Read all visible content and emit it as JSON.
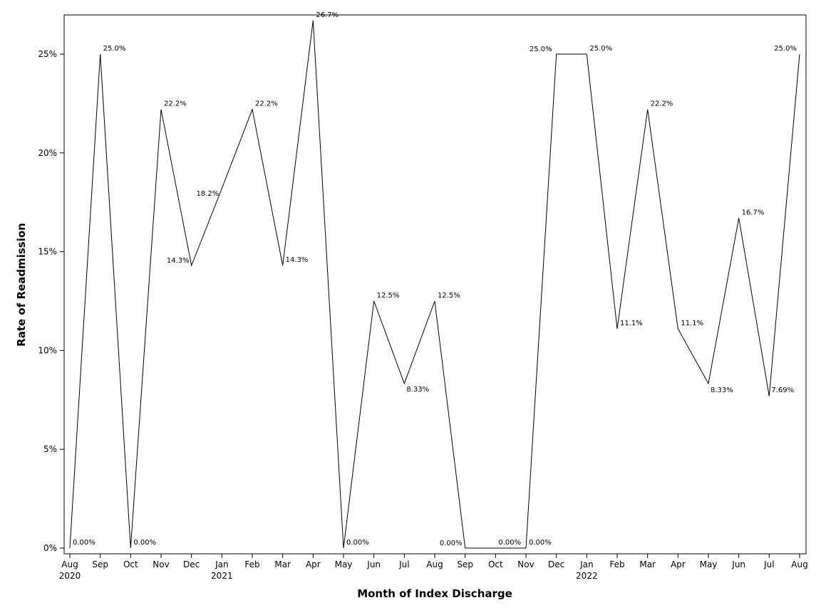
{
  "chart_data": {
    "type": "line",
    "title": "",
    "xlabel": "Month of Index Discharge",
    "ylabel": "Rate of Readmission",
    "ylim": [
      0,
      26.7
    ],
    "y_ticks": [
      0,
      5,
      10,
      15,
      20,
      25
    ],
    "y_tick_labels": [
      "0%",
      "5%",
      "10%",
      "15%",
      "20%",
      "25%"
    ],
    "grid": false,
    "legend": "none",
    "line_color": "#000000",
    "x": [
      "Aug 2020",
      "Sep 2020",
      "Oct 2020",
      "Nov 2020",
      "Dec 2020",
      "Jan 2021",
      "Feb 2021",
      "Mar 2021",
      "Apr 2021",
      "May 2021",
      "Jun 2021",
      "Jul 2021",
      "Aug 2021",
      "Sep 2021",
      "Oct 2021",
      "Nov 2021",
      "Dec 2021",
      "Jan 2022",
      "Feb 2022",
      "Mar 2022",
      "Apr 2022",
      "May 2022",
      "Jun 2022",
      "Jul 2022",
      "Aug 2022"
    ],
    "x_tick_labels": [
      "Aug",
      "Sep",
      "Oct",
      "Nov",
      "Dec",
      "Jan",
      "Feb",
      "Mar",
      "Apr",
      "May",
      "Jun",
      "Jul",
      "Aug",
      "Sep",
      "Oct",
      "Nov",
      "Dec",
      "Jan",
      "Feb",
      "Mar",
      "Apr",
      "May",
      "Jun",
      "Jul",
      "Aug"
    ],
    "x_year_labels": [
      {
        "index": 0,
        "label": "2020"
      },
      {
        "index": 5,
        "label": "2021"
      },
      {
        "index": 17,
        "label": "2022"
      }
    ],
    "values": [
      0,
      25.0,
      0,
      22.2,
      14.3,
      18.2,
      22.2,
      14.3,
      26.7,
      0,
      12.5,
      8.33,
      12.5,
      0,
      0,
      0,
      25.0,
      25.0,
      11.1,
      22.2,
      11.1,
      8.33,
      16.7,
      7.69,
      25.0
    ],
    "data_labels": [
      "0.00%",
      "25.0%",
      "0.00%",
      "22.2%",
      "14.3%",
      "18.2%",
      "22.2%",
      "14.3%",
      "26.7%",
      "0.00%",
      "12.5%",
      "8.33%",
      "12.5%",
      "0.00%",
      "0.00%",
      "0.00%",
      "25.0%",
      "25.0%",
      "11.1%",
      "22.2%",
      "11.1%",
      "8.33%",
      "16.7%",
      "7.69%",
      "25.0%"
    ]
  }
}
